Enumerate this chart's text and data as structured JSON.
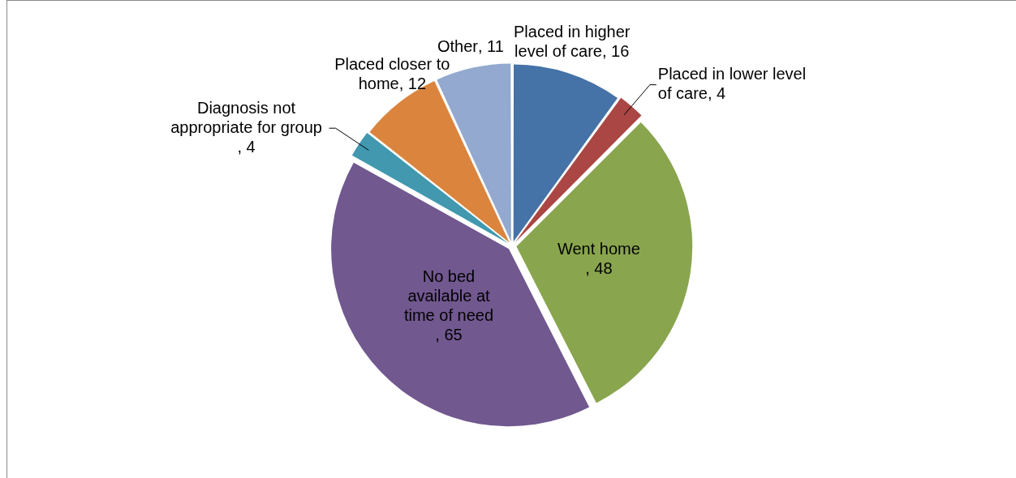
{
  "chart_data": {
    "type": "pie",
    "categories": [
      "Placed in higher level of care",
      "Placed in lower level of care",
      "Went home",
      "No bed available at time of need",
      "Diagnosis not appropriate for group",
      "Placed closer to home",
      "Other"
    ],
    "values": [
      16,
      4,
      48,
      65,
      4,
      12,
      11
    ],
    "colors": [
      "#4572a7",
      "#aa4643",
      "#89a54e",
      "#71588f",
      "#4198af",
      "#db843d",
      "#93a9cf"
    ],
    "value_labels": [
      ", 16",
      ", 4",
      ", 48",
      ", 65",
      ", 4",
      ", 12",
      ", 11"
    ],
    "legend": false
  }
}
